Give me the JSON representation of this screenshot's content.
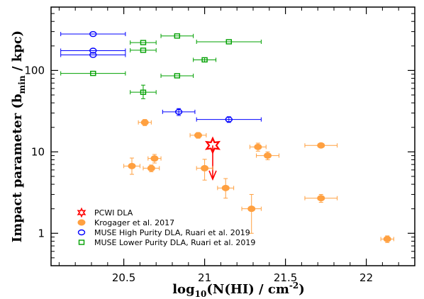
{
  "chart_data": {
    "type": "scatter",
    "title": "",
    "xlabel": "log10(N(HI) / cm^-2)",
    "ylabel": "Impact parameter (b_min / kpc)",
    "xlim": [
      20.05,
      22.3
    ],
    "ylim": [
      0.4,
      600
    ],
    "y_scale": "log",
    "grid": false,
    "legend_position": "bottom-left",
    "x_ticks": [
      {
        "value": 20.5,
        "label": "20.5"
      },
      {
        "value": 21,
        "label": "21"
      },
      {
        "value": 21.5,
        "label": "21.5"
      },
      {
        "value": 22,
        "label": "22"
      }
    ],
    "y_ticks": [
      {
        "value": 1,
        "label": "1"
      },
      {
        "value": 10,
        "label": "10"
      },
      {
        "value": 100,
        "label": "100"
      }
    ],
    "series": [
      {
        "name": "PCWI DLA",
        "marker": "star",
        "color": "#ff0000",
        "points": [
          {
            "x": 21.05,
            "y": 12,
            "xerr": 0.0,
            "yerr_lo": 0,
            "yerr_hi": 0,
            "upper_limit": true
          }
        ]
      },
      {
        "name": "Krogager et al. 2017",
        "marker": "filled-circle",
        "color": "#ffa040",
        "points": [
          {
            "x": 20.63,
            "y": 23,
            "xerr": 0.04,
            "yerr_lo": 2,
            "yerr_hi": 2
          },
          {
            "x": 20.96,
            "y": 16,
            "xerr": 0.05,
            "yerr_lo": 1.3,
            "yerr_hi": 1.3
          },
          {
            "x": 21.33,
            "y": 11.5,
            "xerr": 0.05,
            "yerr_lo": 1.3,
            "yerr_hi": 1.3
          },
          {
            "x": 21.39,
            "y": 9,
            "xerr": 0.07,
            "yerr_lo": 1,
            "yerr_hi": 1
          },
          {
            "x": 21.72,
            "y": 12,
            "xerr": 0.1,
            "yerr_lo": 0.5,
            "yerr_hi": 0.5
          },
          {
            "x": 20.69,
            "y": 8.3,
            "xerr": 0.04,
            "yerr_lo": 1,
            "yerr_hi": 1
          },
          {
            "x": 20.55,
            "y": 6.7,
            "xerr": 0.05,
            "yerr_lo": 1.4,
            "yerr_hi": 1.7
          },
          {
            "x": 20.67,
            "y": 6.3,
            "xerr": 0.05,
            "yerr_lo": 0.6,
            "yerr_hi": 0.6
          },
          {
            "x": 21.0,
            "y": 6.3,
            "xerr": 0.05,
            "yerr_lo": 1.8,
            "yerr_hi": 1.8
          },
          {
            "x": 21.13,
            "y": 3.6,
            "xerr": 0.05,
            "yerr_lo": 0.9,
            "yerr_hi": 1.1
          },
          {
            "x": 21.29,
            "y": 2.0,
            "xerr": 0.06,
            "yerr_lo": 1.0,
            "yerr_hi": 1.0
          },
          {
            "x": 21.72,
            "y": 2.7,
            "xerr": 0.1,
            "yerr_lo": 0.3,
            "yerr_hi": 0.3
          },
          {
            "x": 22.13,
            "y": 0.85,
            "xerr": 0.04,
            "yerr_lo": 0.08,
            "yerr_hi": 0.08
          }
        ]
      },
      {
        "name": "MUSE High Purity DLA, Ruari et al. 2019",
        "marker": "open-circle",
        "color": "#0000ff",
        "points": [
          {
            "x": 20.31,
            "y": 280,
            "xerr": 0.2,
            "yerr_lo": 0,
            "yerr_hi": 0
          },
          {
            "x": 20.31,
            "y": 175,
            "xerr": 0.2,
            "yerr_lo": 0,
            "yerr_hi": 0
          },
          {
            "x": 20.31,
            "y": 155,
            "xerr": 0.2,
            "yerr_lo": 0,
            "yerr_hi": 0
          },
          {
            "x": 20.84,
            "y": 31,
            "xerr": 0.1,
            "yerr_lo": 3,
            "yerr_hi": 3
          },
          {
            "x": 21.15,
            "y": 25,
            "xerr": 0.2,
            "yerr_lo": 2,
            "yerr_hi": 2
          }
        ]
      },
      {
        "name": "MUSE Lower Purity DLA, Ruari et al. 2019",
        "marker": "open-square",
        "color": "#00a000",
        "points": [
          {
            "x": 20.83,
            "y": 265,
            "xerr": 0.1,
            "yerr_lo": 0,
            "yerr_hi": 0
          },
          {
            "x": 20.62,
            "y": 220,
            "xerr": 0.08,
            "yerr_lo": 0,
            "yerr_hi": 0
          },
          {
            "x": 21.15,
            "y": 225,
            "xerr": 0.2,
            "yerr_lo": 0,
            "yerr_hi": 0
          },
          {
            "x": 20.62,
            "y": 177,
            "xerr": 0.08,
            "yerr_lo": 0,
            "yerr_hi": 0
          },
          {
            "x": 21.0,
            "y": 135,
            "xerr": 0.07,
            "yerr_lo": 8,
            "yerr_hi": 8
          },
          {
            "x": 20.31,
            "y": 92,
            "xerr": 0.2,
            "yerr_lo": 0,
            "yerr_hi": 0
          },
          {
            "x": 20.83,
            "y": 86,
            "xerr": 0.1,
            "yerr_lo": 0,
            "yerr_hi": 0
          },
          {
            "x": 20.62,
            "y": 54,
            "xerr": 0.08,
            "yerr_lo": 9,
            "yerr_hi": 12
          }
        ]
      }
    ]
  }
}
